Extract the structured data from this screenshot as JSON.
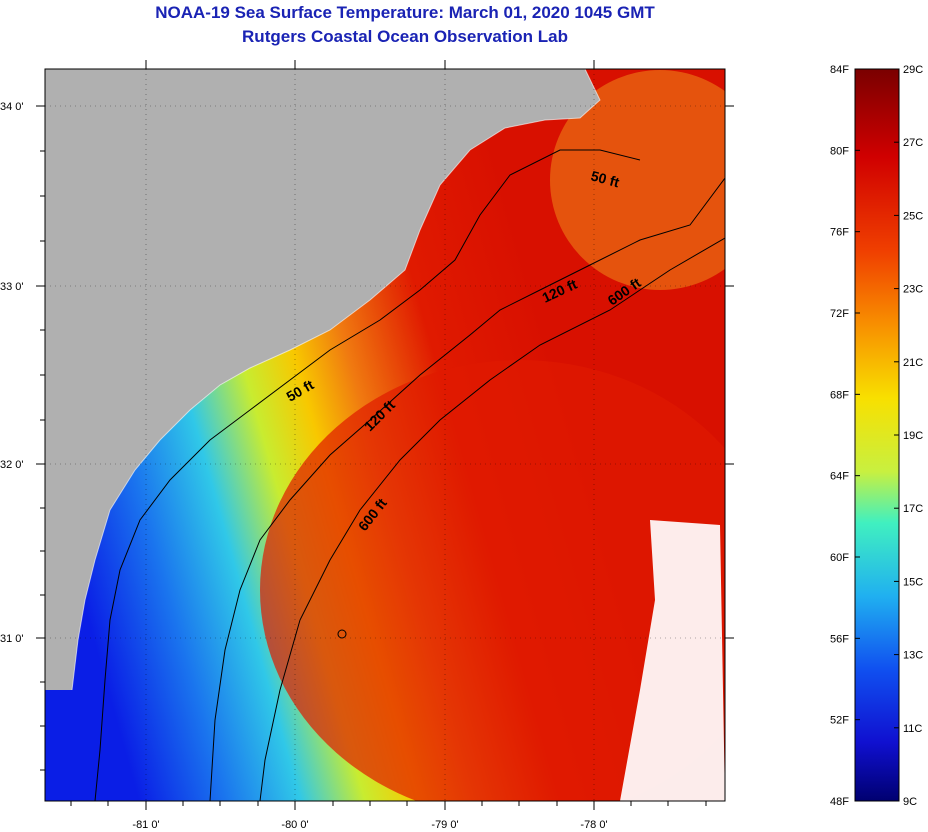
{
  "title": {
    "line1": "NOAA-19 Sea Surface Temperature:  March 01, 2020 1045 GMT",
    "line2": "Rutgers Coastal Ocean Observation Lab"
  },
  "map": {
    "lat_labels": [
      "34 0'",
      "33 0'",
      "32 0'",
      "31 0'"
    ],
    "lon_labels": [
      "-81 0'",
      "-80 0'",
      "-79 0'",
      "-78 0'"
    ],
    "contour_labels": [
      "50 ft",
      "120 ft",
      "600 ft",
      "50 ft",
      "120 ft",
      "600 ft"
    ],
    "colors": {
      "land": "#b0b0b0",
      "cold": "#0a1ee6",
      "warm": "#e01a00",
      "cloud": "#ffffff"
    }
  },
  "colorbar": {
    "fahrenheit_labels": [
      "84F",
      "80F",
      "76F",
      "72F",
      "68F",
      "64F",
      "60F",
      "56F",
      "52F",
      "48F"
    ],
    "celsius_labels": [
      "29C",
      "27C",
      "25C",
      "23C",
      "21C",
      "19C",
      "17C",
      "15C",
      "13C",
      "11C",
      "9C"
    ]
  }
}
